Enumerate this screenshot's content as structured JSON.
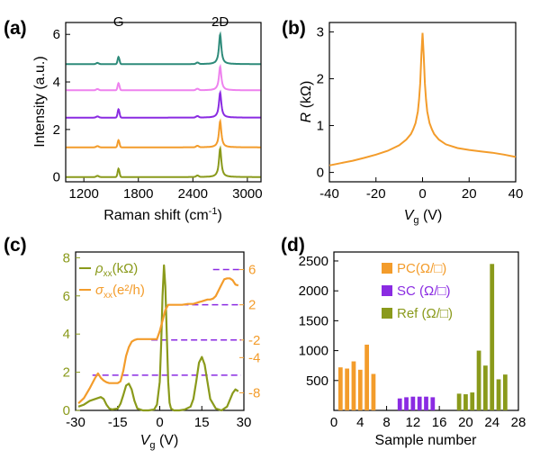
{
  "colors": {
    "teal": "#2e8b7a",
    "pink": "#ee82ee",
    "purple": "#8a2be2",
    "orange": "#f39c2b",
    "olive": "#8a9a1b",
    "dashed": "#8a2be2"
  },
  "chart_data": [
    {
      "id": "a",
      "panel_label": "(a)",
      "type": "line",
      "xlabel": "Raman shift (cm-1)",
      "xlabel_base": "Raman shift (cm",
      "xlabel_sup": "-1",
      "xlabel_end": ")",
      "ylabel": "Intensity (a.u.)",
      "xlim": [
        1000,
        3150
      ],
      "ylim": [
        -0.2,
        6.5
      ],
      "xticks": [
        1200,
        1800,
        2400,
        3000
      ],
      "yticks": [
        0,
        2,
        4,
        6
      ],
      "annotations": [
        {
          "text": "G",
          "x": 1582
        },
        {
          "text": "2D",
          "x": 2700
        }
      ],
      "spectra": [
        {
          "color": "olive",
          "baseline": 0.0,
          "g_peak": 0.35,
          "d_peak": 1.2
        },
        {
          "color": "orange",
          "baseline": 1.25,
          "g_peak": 0.3,
          "d_peak": 1.1
        },
        {
          "color": "purple",
          "baseline": 2.5,
          "g_peak": 0.35,
          "d_peak": 1.05
        },
        {
          "color": "pink",
          "baseline": 3.65,
          "g_peak": 0.3,
          "d_peak": 1.0
        },
        {
          "color": "teal",
          "baseline": 4.75,
          "g_peak": 0.3,
          "d_peak": 1.25
        }
      ],
      "g_position": 1582,
      "d_position": 2700
    },
    {
      "id": "b",
      "panel_label": "(b)",
      "type": "line",
      "xlabel": "Vg (V)",
      "xlabel_sym": "V",
      "xlabel_sub": "g",
      "xlabel_unit": " (V)",
      "ylabel": "R (kΩ)",
      "ylabel_sym": "R",
      "ylabel_unit": " (kΩ)",
      "xlim": [
        -40,
        40
      ],
      "ylim": [
        -0.2,
        3.2
      ],
      "xticks": [
        -40,
        -20,
        0,
        20,
        40
      ],
      "yticks": [
        0,
        1,
        2,
        3
      ],
      "series": [
        {
          "color": "orange",
          "x": [
            -40,
            -35,
            -30,
            -25,
            -20,
            -15,
            -10,
            -7,
            -5,
            -4,
            -3,
            -2,
            -1.5,
            -1,
            -0.5,
            0,
            0.5,
            1,
            1.5,
            2,
            3,
            4,
            5,
            7,
            10,
            15,
            20,
            25,
            30,
            35,
            40
          ],
          "y": [
            0.15,
            0.2,
            0.25,
            0.31,
            0.38,
            0.46,
            0.58,
            0.7,
            0.82,
            0.92,
            1.05,
            1.3,
            1.55,
            1.9,
            2.5,
            2.98,
            2.5,
            1.9,
            1.55,
            1.3,
            1.05,
            0.92,
            0.82,
            0.7,
            0.6,
            0.52,
            0.48,
            0.45,
            0.42,
            0.38,
            0.33
          ]
        }
      ]
    },
    {
      "id": "c",
      "panel_label": "(c)",
      "type": "line",
      "xlabel": "Vg (V)",
      "xlabel_sym": "V",
      "xlabel_sub": "g",
      "xlabel_unit": " (V)",
      "xlim": [
        -30,
        30
      ],
      "xticks": [
        -30,
        -15,
        0,
        15,
        30
      ],
      "ylim_left": [
        0,
        8.3
      ],
      "yticks_left": [
        0,
        2,
        4,
        6,
        8
      ],
      "ylim_right": [
        -10,
        8
      ],
      "yticks_right": [
        6,
        2,
        -2,
        -4,
        -8
      ],
      "legend": [
        {
          "sym": "ρ",
          "sub": "xx",
          "rest": "(kΩ)",
          "color": "olive"
        },
        {
          "sym": "σ",
          "sub": "xx",
          "rest": "(e²/h)",
          "color": "orange"
        }
      ],
      "dashed_levels_right": [
        {
          "y": 6,
          "x0": 19,
          "x1": 29
        },
        {
          "y": 2,
          "x0": 8,
          "x1": 29
        },
        {
          "y": -2,
          "x0": -3,
          "x1": 29
        },
        {
          "y": -6,
          "x0": -24,
          "x1": 29
        }
      ],
      "series": [
        {
          "name": "ρxx(kΩ)",
          "axis": "left",
          "color": "olive",
          "x": [
            -29,
            -27,
            -25,
            -23,
            -21,
            -20,
            -19,
            -18,
            -17,
            -15,
            -14,
            -13,
            -12,
            -11,
            -10,
            -9,
            -8,
            -6,
            -4,
            -2,
            -1,
            0,
            0.5,
            1,
            1.5,
            2,
            2.5,
            3,
            3.5,
            4,
            5,
            7,
            9,
            11,
            12,
            13,
            14,
            15,
            16,
            17,
            18,
            20,
            22,
            24,
            26,
            27,
            28
          ],
          "y": [
            0.2,
            0.3,
            0.5,
            0.6,
            0.7,
            0.6,
            0.3,
            0.1,
            0.05,
            0.1,
            0.35,
            0.8,
            1.3,
            1.4,
            1.1,
            0.5,
            0.1,
            0.0,
            0.0,
            0.05,
            0.3,
            1.5,
            3.5,
            6.0,
            7.6,
            6.5,
            4.0,
            1.5,
            0.4,
            0.1,
            0.0,
            0.0,
            0.05,
            0.2,
            0.6,
            1.5,
            2.5,
            2.8,
            2.4,
            1.5,
            0.6,
            0.1,
            0.0,
            0.2,
            0.9,
            1.1,
            1.0
          ]
        },
        {
          "name": "σxx(e²/h)",
          "axis": "right",
          "color": "orange",
          "x": [
            -29,
            -27,
            -25,
            -23,
            -22,
            -21,
            -20,
            -19,
            -18,
            -17,
            -16,
            -15,
            -14,
            -13,
            -12,
            -11,
            -10,
            -9,
            -8,
            -6,
            -4,
            -2,
            -1,
            0,
            1,
            2,
            3,
            4,
            6,
            8,
            10,
            11,
            12,
            13,
            14,
            15,
            16,
            17,
            18,
            19,
            20,
            22,
            23,
            24,
            25,
            26,
            27,
            28
          ],
          "y": [
            -9.2,
            -8.6,
            -7.5,
            -6.3,
            -5.8,
            -6.3,
            -6.6,
            -6.8,
            -6.9,
            -6.9,
            -6.9,
            -6.9,
            -6.7,
            -5.5,
            -3.8,
            -2.8,
            -2.2,
            -2.0,
            -1.9,
            -1.9,
            -1.9,
            -1.9,
            -1.9,
            -1.0,
            0.2,
            1.4,
            2.0,
            2.0,
            2.0,
            2.0,
            2.1,
            2.1,
            2.1,
            2.2,
            2.3,
            2.4,
            2.5,
            2.6,
            2.6,
            2.7,
            3.0,
            4.3,
            4.9,
            5.0,
            5.0,
            4.8,
            4.3,
            4.2
          ]
        }
      ]
    },
    {
      "id": "d",
      "panel_label": "(d)",
      "type": "bar",
      "xlabel": "Sample number",
      "xlim": [
        0,
        28
      ],
      "ylim": [
        0,
        2650
      ],
      "xticks": [
        0,
        4,
        8,
        12,
        16,
        20,
        24,
        28
      ],
      "yticks": [
        500,
        1000,
        1500,
        2000,
        2500
      ],
      "legend_position": "top-center",
      "series": [
        {
          "name": "PC(Ω/□)",
          "color": "orange",
          "x": [
            1,
            2,
            3,
            4,
            5,
            6
          ],
          "values": [
            720,
            700,
            820,
            680,
            1100,
            610
          ]
        },
        {
          "name": "SC (Ω/□)",
          "color": "purple",
          "x": [
            10,
            11,
            12,
            13,
            14,
            15
          ],
          "values": [
            200,
            220,
            230,
            230,
            230,
            220
          ]
        },
        {
          "name": "Ref (Ω/□)",
          "color": "olive",
          "x": [
            19,
            20,
            21,
            22,
            23,
            24,
            25,
            26
          ],
          "values": [
            280,
            270,
            300,
            1000,
            750,
            2450,
            520,
            600
          ]
        }
      ]
    }
  ]
}
